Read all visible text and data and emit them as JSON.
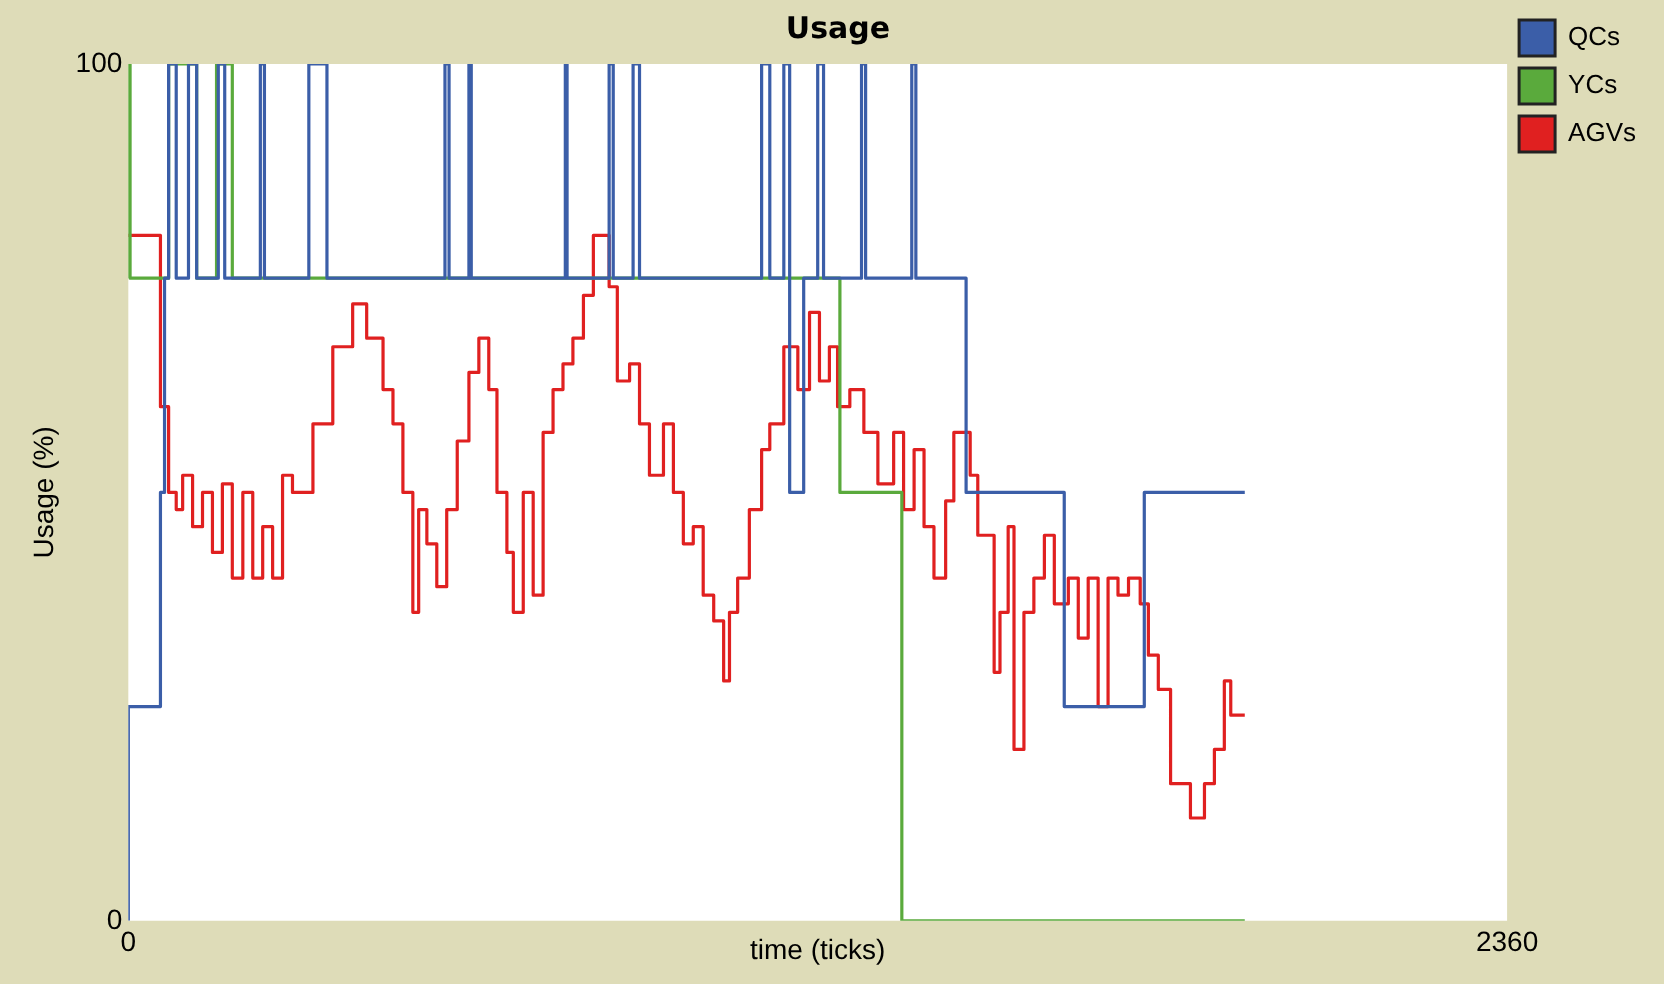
{
  "chart_data": {
    "type": "step",
    "title": "Usage",
    "xlabel": "time (ticks)",
    "ylabel": "Usage (%)",
    "xlim": [
      0,
      2360
    ],
    "xticks": [
      0,
      2360
    ],
    "ylim": [
      0,
      100
    ],
    "yticks": [
      0,
      100
    ],
    "grid": false,
    "legend": "top right",
    "marker": "none",
    "line_style": "solid",
    "series": [
      {
        "name": "QCs",
        "color": "#3b5ea8",
        "x": [
          0,
          55,
          62,
          69,
          82,
          103,
          117,
          154,
          165,
          226,
          233,
          309,
          340,
          542,
          549,
          583,
          587,
          748,
          751,
          823,
          830,
          864,
          875,
          1084,
          1098,
          1122,
          1132,
          1156,
          1180,
          1190,
          1255,
          1262,
          1341,
          1348,
          1434,
          1602,
          1739,
          1746,
          1911
        ],
        "values": [
          0,
          25,
          50,
          75,
          100,
          75,
          100,
          75,
          100,
          75,
          100,
          75,
          100,
          75,
          100,
          75,
          100,
          75,
          100,
          75,
          100,
          75,
          100,
          75,
          100,
          75,
          100,
          50,
          75,
          100,
          75,
          100,
          75,
          100,
          75,
          50,
          25,
          50,
          50
        ]
      },
      {
        "name": "YCs",
        "color": "#5aaa3c",
        "x": [
          0,
          3,
          69,
          117,
          151,
          178,
          1218,
          1324,
          1742,
          1911
        ],
        "values": [
          75,
          100,
          75,
          100,
          75,
          100,
          75,
          50,
          0,
          0
        ]
      },
      {
        "name": "AGVs",
        "color": "#e02020",
        "x": [
          0,
          55,
          69,
          82,
          93,
          110,
          127,
          144,
          161,
          178,
          196,
          213,
          230,
          247,
          264,
          281,
          316,
          350,
          384,
          408,
          436,
          453,
          470,
          487,
          497,
          511,
          528,
          545,
          563,
          583,
          600,
          617,
          631,
          648,
          659,
          676,
          693,
          710,
          727,
          744,
          761,
          779,
          796,
          823,
          837,
          858,
          875,
          892,
          916,
          933,
          950,
          967,
          984,
          1002,
          1019,
          1029,
          1043,
          1063,
          1084,
          1098,
          1122,
          1146,
          1166,
          1183,
          1200,
          1214,
          1235,
          1259,
          1283,
          1310,
          1327,
          1345,
          1362,
          1379,
          1399,
          1413,
          1441,
          1454,
          1482,
          1492,
          1506,
          1516,
          1533,
          1550,
          1568,
          1585,
          1609,
          1626,
          1643,
          1660,
          1677,
          1694,
          1712,
          1732,
          1746,
          1763,
          1784,
          1818,
          1842,
          1859,
          1876,
          1887,
          1900,
          1911
        ],
        "values": [
          80,
          80,
          60,
          50,
          48,
          52,
          46,
          50,
          43,
          51,
          40,
          50,
          40,
          46,
          40,
          52,
          50,
          58,
          67,
          72,
          68,
          62,
          58,
          50,
          36,
          48,
          44,
          39,
          48,
          56,
          64,
          68,
          62,
          50,
          43,
          36,
          50,
          38,
          57,
          62,
          65,
          68,
          73,
          80,
          74,
          63,
          65,
          58,
          52,
          58,
          50,
          44,
          46,
          38,
          35,
          28,
          36,
          40,
          48,
          55,
          58,
          67,
          62,
          71,
          63,
          67,
          60,
          62,
          57,
          51,
          57,
          48,
          55,
          46,
          40,
          49,
          57,
          52,
          45,
          29,
          36,
          46,
          20,
          36,
          40,
          45,
          37,
          40,
          33,
          40,
          25,
          40,
          38,
          40,
          37,
          31,
          27,
          16,
          12,
          16,
          20,
          28,
          24,
          24
        ]
      }
    ]
  }
}
